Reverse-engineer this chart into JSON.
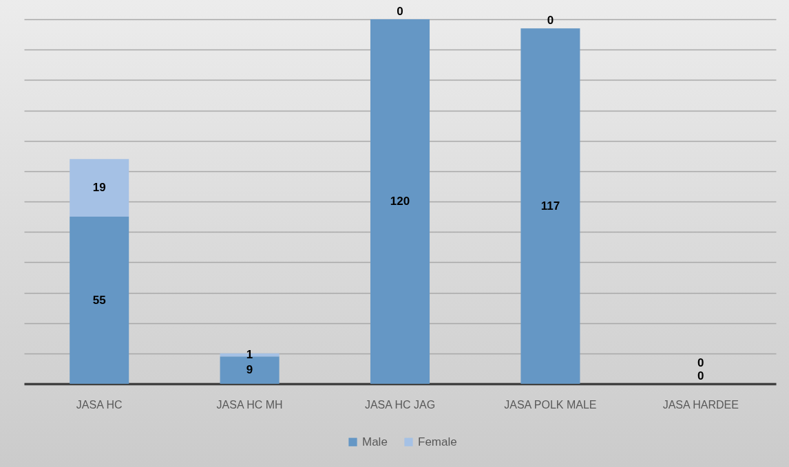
{
  "chart_data": {
    "type": "bar",
    "categories": [
      "JASA HC",
      "JASA HC MH",
      "JASA HC JAG",
      "JASA POLK MALE",
      "JASA HARDEE"
    ],
    "stacked": true,
    "data_labels": true,
    "grid": "y",
    "legend": "bottom",
    "tick_labels": "x",
    "series": [
      {
        "name": "Male",
        "color": "#6597c5",
        "values": [
          55,
          9,
          120,
          117,
          0
        ]
      },
      {
        "name": "Female",
        "color": "#a5c1e5",
        "values": [
          19,
          1,
          0,
          0,
          0
        ]
      }
    ]
  }
}
